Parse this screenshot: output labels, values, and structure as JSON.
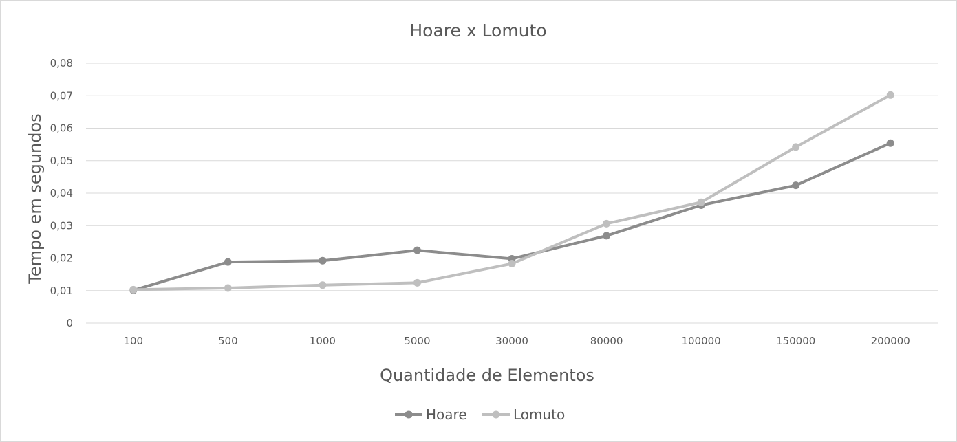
{
  "chart_data": {
    "type": "line",
    "title": "Hoare x Lomuto",
    "xlabel": "Quantidade de Elementos",
    "ylabel": "Tempo em segundos",
    "categories": [
      "100",
      "500",
      "1000",
      "5000",
      "30000",
      "80000",
      "100000",
      "150000",
      "200000"
    ],
    "ylim": [
      0,
      0.08
    ],
    "y_ticks": [
      "0",
      "0,01",
      "0,02",
      "0,03",
      "0,04",
      "0,05",
      "0,06",
      "0,07",
      "0,08"
    ],
    "grid": true,
    "legend_position": "bottom",
    "series": [
      {
        "name": "Hoare",
        "color": "#8c8c8c",
        "values": [
          0.0101,
          0.0188,
          0.0192,
          0.0224,
          0.0198,
          0.0269,
          0.0363,
          0.0424,
          0.0554
        ]
      },
      {
        "name": "Lomuto",
        "color": "#bfbfbf",
        "values": [
          0.0103,
          0.0108,
          0.0117,
          0.0124,
          0.0183,
          0.0306,
          0.0372,
          0.0542,
          0.0702
        ]
      }
    ]
  }
}
